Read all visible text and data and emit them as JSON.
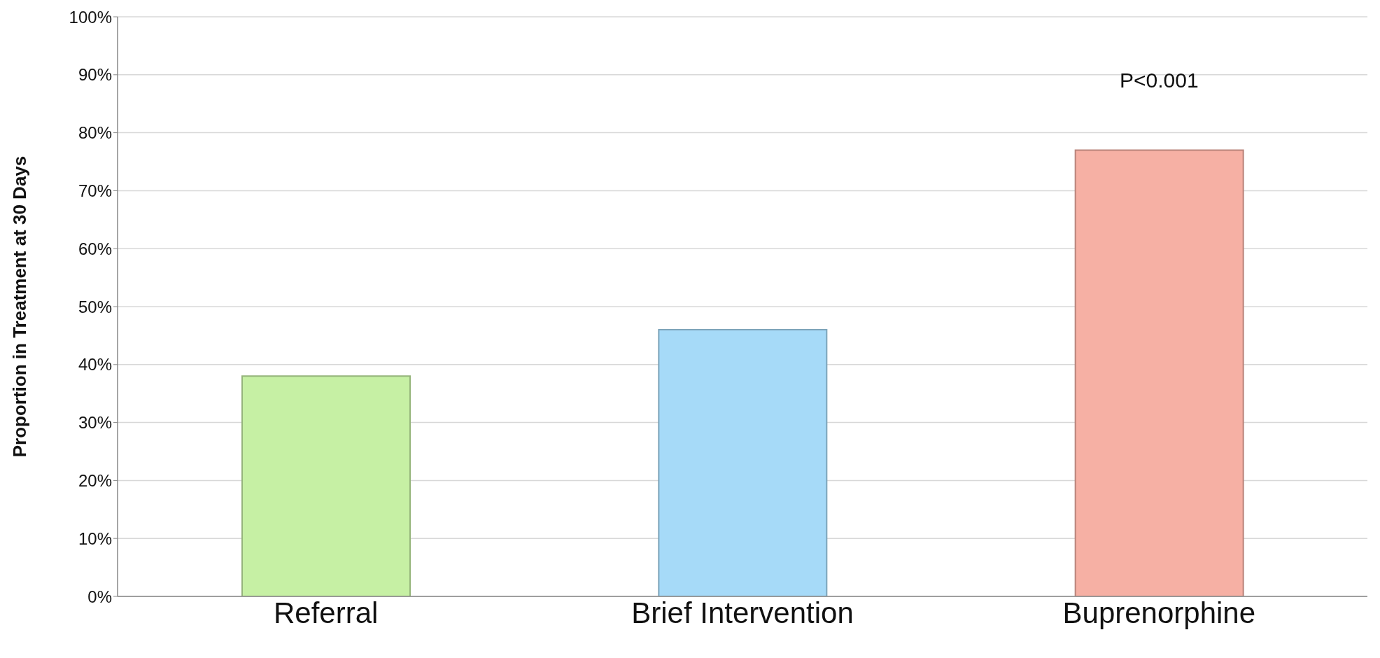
{
  "chart_data": {
    "type": "bar",
    "ylabel": "Proportion in Treatment at 30 Days",
    "categories": [
      "Referral",
      "Brief Intervention",
      "Buprenorphine"
    ],
    "values": [
      38,
      46,
      77
    ],
    "colors": [
      "#c6f0a4",
      "#a6daf8",
      "#f6b0a4"
    ],
    "ylim": [
      0,
      100
    ],
    "yticks": [
      {
        "value": 0,
        "label": "0%"
      },
      {
        "value": 10,
        "label": "10%"
      },
      {
        "value": 20,
        "label": "20%"
      },
      {
        "value": 30,
        "label": "30%"
      },
      {
        "value": 40,
        "label": "40%"
      },
      {
        "value": 50,
        "label": "50%"
      },
      {
        "value": 60,
        "label": "60%"
      },
      {
        "value": 70,
        "label": "70%"
      },
      {
        "value": 80,
        "label": "80%"
      },
      {
        "value": 90,
        "label": "90%"
      },
      {
        "value": 100,
        "label": "100%"
      }
    ],
    "grid": "y",
    "annotations": [
      "P<0.001"
    ]
  }
}
